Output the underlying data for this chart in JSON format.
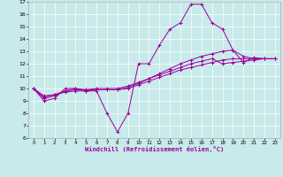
{
  "title": "",
  "xlabel": "Windchill (Refroidissement éolien,°C)",
  "ylabel": "",
  "bg_color": "#c8eaea",
  "line_color": "#990099",
  "grid_color": "#ffffff",
  "xlim": [
    -0.5,
    23.5
  ],
  "ylim": [
    6,
    17
  ],
  "xticks": [
    0,
    1,
    2,
    3,
    4,
    5,
    6,
    7,
    8,
    9,
    10,
    11,
    12,
    13,
    14,
    15,
    16,
    17,
    18,
    19,
    20,
    21,
    22,
    23
  ],
  "yticks": [
    6,
    7,
    8,
    9,
    10,
    11,
    12,
    13,
    14,
    15,
    16,
    17
  ],
  "series": [
    {
      "x": [
        0,
        1,
        2,
        3,
        4,
        5,
        6,
        7,
        8,
        9,
        10,
        11,
        12,
        13,
        14,
        15,
        16,
        17,
        18,
        19,
        20,
        21,
        22,
        23
      ],
      "y": [
        10.0,
        9.0,
        9.2,
        10.0,
        10.0,
        9.8,
        9.8,
        8.0,
        6.5,
        8.0,
        12.0,
        12.0,
        13.5,
        14.8,
        15.3,
        16.8,
        16.8,
        15.3,
        14.8,
        13.1,
        12.1,
        12.5,
        12.4,
        12.4
      ]
    },
    {
      "x": [
        0,
        1,
        2,
        3,
        4,
        5,
        6,
        7,
        8,
        9,
        10,
        11,
        12,
        13,
        14,
        15,
        16,
        17,
        18,
        19,
        20,
        21,
        22,
        23
      ],
      "y": [
        10.0,
        9.2,
        9.4,
        9.8,
        10.0,
        9.9,
        9.9,
        9.9,
        9.9,
        10.1,
        10.4,
        10.8,
        11.2,
        11.6,
        12.0,
        12.3,
        12.6,
        12.8,
        13.0,
        13.1,
        12.6,
        12.4,
        12.4,
        12.4
      ]
    },
    {
      "x": [
        0,
        1,
        2,
        3,
        4,
        5,
        6,
        7,
        8,
        9,
        10,
        11,
        12,
        13,
        14,
        15,
        16,
        17,
        18,
        19,
        20,
        21,
        22,
        23
      ],
      "y": [
        10.0,
        9.3,
        9.5,
        9.8,
        9.9,
        9.9,
        10.0,
        10.0,
        10.0,
        10.2,
        10.5,
        10.8,
        11.1,
        11.4,
        11.7,
        12.0,
        12.2,
        12.4,
        12.0,
        12.1,
        12.2,
        12.3,
        12.4,
        12.4
      ]
    },
    {
      "x": [
        0,
        1,
        2,
        3,
        4,
        5,
        6,
        7,
        8,
        9,
        10,
        11,
        12,
        13,
        14,
        15,
        16,
        17,
        18,
        19,
        20,
        21,
        22,
        23
      ],
      "y": [
        10.0,
        9.4,
        9.5,
        9.7,
        9.8,
        9.8,
        9.9,
        9.9,
        9.9,
        10.0,
        10.3,
        10.6,
        10.9,
        11.2,
        11.5,
        11.7,
        11.9,
        12.1,
        12.3,
        12.4,
        12.4,
        12.4,
        12.4,
        12.4
      ]
    }
  ]
}
